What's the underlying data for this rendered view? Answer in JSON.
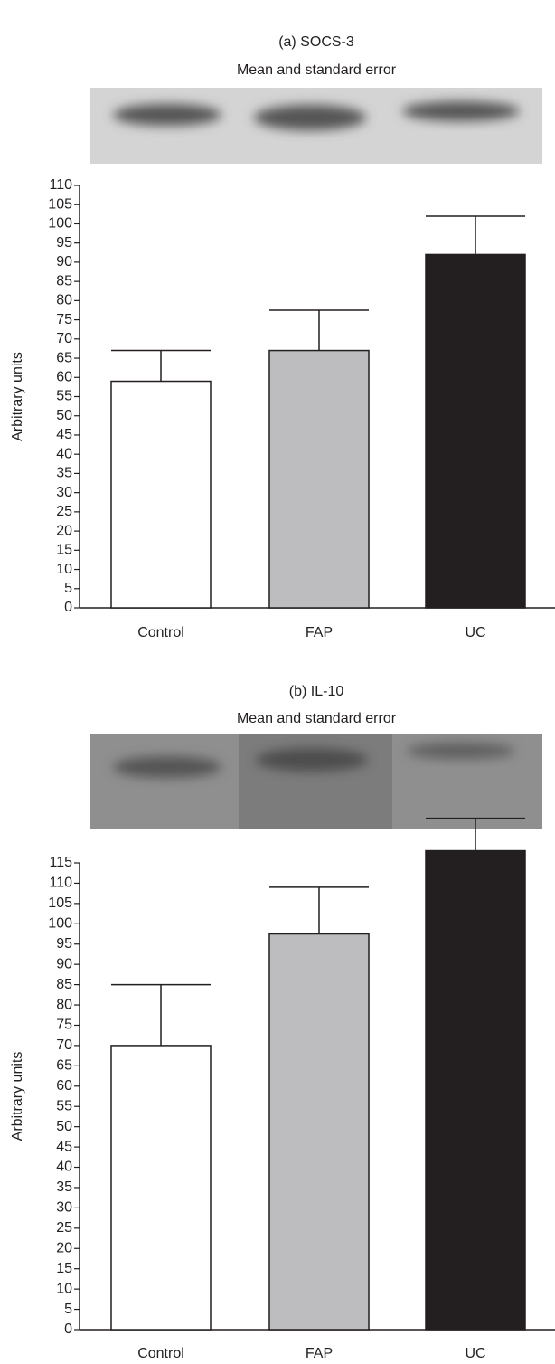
{
  "chart_data": [
    {
      "type": "bar",
      "title": "(a) SOCS-3",
      "subtitle": "Mean and standard error",
      "y_label": "Arbitrary units",
      "categories": [
        "Control",
        "FAP",
        "UC"
      ],
      "values": [
        59,
        67,
        92
      ],
      "errors": [
        8,
        10.5,
        10
      ],
      "colors": [
        "#ffffff",
        "#bdbdc0",
        "#231f20"
      ],
      "ylim": [
        0,
        110
      ],
      "yticks": [
        0,
        5,
        10,
        15,
        20,
        25,
        30,
        35,
        40,
        45,
        50,
        55,
        60,
        65,
        70,
        75,
        80,
        85,
        90,
        95,
        100,
        105,
        110
      ]
    },
    {
      "type": "bar",
      "title": "(b) IL-10",
      "subtitle": "Mean and standard error",
      "y_label": "Arbitrary units",
      "categories": [
        "Control",
        "FAP",
        "UC"
      ],
      "values": [
        70,
        97.5,
        118
      ],
      "errors": [
        15,
        11.5,
        8
      ],
      "colors": [
        "#ffffff",
        "#bdbdc0",
        "#231f20"
      ],
      "ylim": [
        0,
        115
      ],
      "yticks": [
        0,
        5,
        10,
        15,
        20,
        25,
        30,
        35,
        40,
        45,
        50,
        55,
        60,
        65,
        70,
        75,
        80,
        85,
        90,
        95,
        100,
        105,
        110,
        115
      ]
    }
  ]
}
